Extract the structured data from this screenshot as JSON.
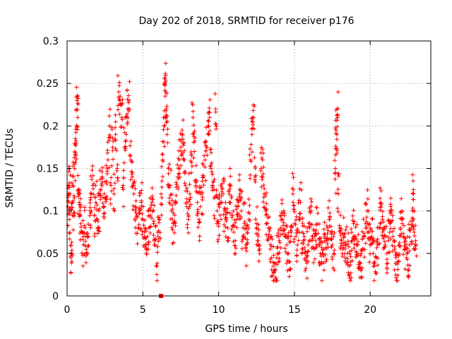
{
  "chart_data": {
    "type": "scatter",
    "title": "Day 202 of 2018, SRMTID for receiver p176",
    "xlabel": "GPS time / hours",
    "ylabel": "SRMTID / TECUs",
    "xlim": [
      0,
      24
    ],
    "ylim": [
      0,
      0.3
    ],
    "xticks": [
      0,
      5,
      10,
      15,
      20
    ],
    "yticks": [
      0,
      0.05,
      0.1,
      0.15,
      0.2,
      0.25,
      0.3
    ],
    "ytick_labels": [
      "0",
      "0.05",
      "0.1",
      "0.15",
      "0.2",
      "0.25",
      "0.3"
    ],
    "grid": true,
    "marker": "+",
    "marker_color": "#ff0000",
    "series": [
      {
        "name": "SRMTID",
        "points": [
          [
            0.05,
            0.105
          ],
          [
            0.1,
            0.13
          ],
          [
            0.15,
            0.09
          ],
          [
            0.2,
            0.12
          ],
          [
            0.25,
            0.045
          ],
          [
            0.3,
            0.05
          ],
          [
            0.35,
            0.11
          ],
          [
            0.4,
            0.14
          ],
          [
            0.45,
            0.095
          ],
          [
            0.5,
            0.155
          ],
          [
            0.55,
            0.185
          ],
          [
            0.6,
            0.18
          ],
          [
            0.65,
            0.23
          ],
          [
            0.7,
            0.21
          ],
          [
            0.75,
            0.12
          ],
          [
            0.8,
            0.11
          ],
          [
            0.85,
            0.1
          ],
          [
            0.9,
            0.085
          ],
          [
            1.0,
            0.075
          ],
          [
            1.1,
            0.06
          ],
          [
            1.2,
            0.08
          ],
          [
            1.3,
            0.05
          ],
          [
            1.4,
            0.07
          ],
          [
            1.5,
            0.1
          ],
          [
            1.6,
            0.12
          ],
          [
            1.7,
            0.13
          ],
          [
            1.8,
            0.095
          ],
          [
            1.9,
            0.11
          ],
          [
            2.0,
            0.09
          ],
          [
            2.1,
            0.1
          ],
          [
            2.2,
            0.125
          ],
          [
            2.3,
            0.14
          ],
          [
            2.4,
            0.105
          ],
          [
            2.5,
            0.115
          ],
          [
            2.6,
            0.135
          ],
          [
            2.7,
            0.16
          ],
          [
            2.8,
            0.2
          ],
          [
            2.9,
            0.13
          ],
          [
            3.0,
            0.175
          ],
          [
            3.1,
            0.12
          ],
          [
            3.2,
            0.19
          ],
          [
            3.3,
            0.15
          ],
          [
            3.4,
            0.24
          ],
          [
            3.5,
            0.235
          ],
          [
            3.6,
            0.21
          ],
          [
            3.7,
            0.13
          ],
          [
            3.8,
            0.175
          ],
          [
            3.9,
            0.19
          ],
          [
            4.0,
            0.22
          ],
          [
            4.1,
            0.23
          ],
          [
            4.2,
            0.16
          ],
          [
            4.3,
            0.14
          ],
          [
            4.4,
            0.12
          ],
          [
            4.5,
            0.105
          ],
          [
            4.6,
            0.095
          ],
          [
            4.7,
            0.08
          ],
          [
            4.8,
            0.1
          ],
          [
            4.9,
            0.11
          ],
          [
            5.0,
            0.09
          ],
          [
            5.1,
            0.075
          ],
          [
            5.2,
            0.06
          ],
          [
            5.3,
            0.07
          ],
          [
            5.4,
            0.08
          ],
          [
            5.5,
            0.095
          ],
          [
            5.6,
            0.115
          ],
          [
            5.7,
            0.085
          ],
          [
            5.8,
            0.06
          ],
          [
            5.9,
            0.035
          ],
          [
            6.0,
            0.07
          ],
          [
            6.1,
            0.09
          ],
          [
            6.2,
            0.12
          ],
          [
            6.3,
            0.16
          ],
          [
            6.4,
            0.2
          ],
          [
            6.45,
            0.25
          ],
          [
            6.5,
            0.24
          ],
          [
            6.55,
            0.22
          ],
          [
            6.6,
            0.19
          ],
          [
            6.7,
            0.15
          ],
          [
            6.8,
            0.13
          ],
          [
            6.9,
            0.1
          ],
          [
            7.0,
            0.085
          ],
          [
            7.1,
            0.095
          ],
          [
            7.2,
            0.11
          ],
          [
            7.3,
            0.14
          ],
          [
            7.4,
            0.16
          ],
          [
            7.5,
            0.175
          ],
          [
            7.6,
            0.19
          ],
          [
            7.7,
            0.16
          ],
          [
            7.8,
            0.13
          ],
          [
            7.9,
            0.105
          ],
          [
            8.0,
            0.09
          ],
          [
            8.1,
            0.12
          ],
          [
            8.2,
            0.145
          ],
          [
            8.3,
            0.21
          ],
          [
            8.4,
            0.17
          ],
          [
            8.5,
            0.13
          ],
          [
            8.6,
            0.11
          ],
          [
            8.7,
            0.09
          ],
          [
            8.8,
            0.105
          ],
          [
            8.9,
            0.12
          ],
          [
            9.0,
            0.14
          ],
          [
            9.1,
            0.16
          ],
          [
            9.2,
            0.175
          ],
          [
            9.3,
            0.2
          ],
          [
            9.4,
            0.21
          ],
          [
            9.5,
            0.15
          ],
          [
            9.6,
            0.13
          ],
          [
            9.7,
            0.115
          ],
          [
            9.8,
            0.22
          ],
          [
            9.9,
            0.1
          ],
          [
            10.0,
            0.085
          ],
          [
            10.1,
            0.095
          ],
          [
            10.2,
            0.11
          ],
          [
            10.3,
            0.12
          ],
          [
            10.4,
            0.1
          ],
          [
            10.5,
            0.09
          ],
          [
            10.6,
            0.08
          ],
          [
            10.7,
            0.11
          ],
          [
            10.8,
            0.13
          ],
          [
            10.9,
            0.095
          ],
          [
            11.0,
            0.075
          ],
          [
            11.1,
            0.065
          ],
          [
            11.2,
            0.09
          ],
          [
            11.3,
            0.11
          ],
          [
            11.4,
            0.12
          ],
          [
            11.5,
            0.1
          ],
          [
            11.6,
            0.07
          ],
          [
            11.7,
            0.085
          ],
          [
            11.8,
            0.06
          ],
          [
            11.9,
            0.075
          ],
          [
            12.0,
            0.09
          ],
          [
            12.1,
            0.16
          ],
          [
            12.2,
            0.19
          ],
          [
            12.3,
            0.21
          ],
          [
            12.4,
            0.14
          ],
          [
            12.5,
            0.08
          ],
          [
            12.6,
            0.065
          ],
          [
            12.7,
            0.055
          ],
          [
            12.8,
            0.15
          ],
          [
            12.9,
            0.16
          ],
          [
            13.0,
            0.12
          ],
          [
            13.1,
            0.1
          ],
          [
            13.2,
            0.085
          ],
          [
            13.3,
            0.07
          ],
          [
            13.4,
            0.055
          ],
          [
            13.5,
            0.045
          ],
          [
            13.6,
            0.035
          ],
          [
            13.7,
            0.03
          ],
          [
            13.8,
            0.02
          ],
          [
            13.9,
            0.05
          ],
          [
            14.0,
            0.065
          ],
          [
            14.1,
            0.08
          ],
          [
            14.2,
            0.09
          ],
          [
            14.3,
            0.1
          ],
          [
            14.4,
            0.07
          ],
          [
            14.5,
            0.06
          ],
          [
            14.6,
            0.05
          ],
          [
            14.7,
            0.04
          ],
          [
            14.8,
            0.075
          ],
          [
            14.9,
            0.12
          ],
          [
            15.0,
            0.085
          ],
          [
            15.1,
            0.07
          ],
          [
            15.2,
            0.06
          ],
          [
            15.3,
            0.09
          ],
          [
            15.4,
            0.11
          ],
          [
            15.5,
            0.075
          ],
          [
            15.6,
            0.065
          ],
          [
            15.7,
            0.05
          ],
          [
            15.8,
            0.045
          ],
          [
            15.9,
            0.06
          ],
          [
            16.0,
            0.08
          ],
          [
            16.1,
            0.1
          ],
          [
            16.2,
            0.07
          ],
          [
            16.3,
            0.055
          ],
          [
            16.4,
            0.065
          ],
          [
            16.5,
            0.085
          ],
          [
            16.6,
            0.06
          ],
          [
            16.7,
            0.05
          ],
          [
            16.8,
            0.04
          ],
          [
            16.9,
            0.055
          ],
          [
            17.0,
            0.07
          ],
          [
            17.1,
            0.065
          ],
          [
            17.2,
            0.08
          ],
          [
            17.3,
            0.09
          ],
          [
            17.4,
            0.075
          ],
          [
            17.5,
            0.06
          ],
          [
            17.6,
            0.05
          ],
          [
            17.7,
            0.145
          ],
          [
            17.75,
            0.195
          ],
          [
            17.8,
            0.19
          ],
          [
            17.85,
            0.22
          ],
          [
            17.9,
            0.12
          ],
          [
            18.0,
            0.08
          ],
          [
            18.1,
            0.065
          ],
          [
            18.2,
            0.055
          ],
          [
            18.3,
            0.07
          ],
          [
            18.4,
            0.06
          ],
          [
            18.5,
            0.05
          ],
          [
            18.6,
            0.035
          ],
          [
            18.7,
            0.04
          ],
          [
            18.8,
            0.065
          ],
          [
            18.9,
            0.085
          ],
          [
            19.0,
            0.07
          ],
          [
            19.1,
            0.06
          ],
          [
            19.2,
            0.05
          ],
          [
            19.3,
            0.04
          ],
          [
            19.4,
            0.03
          ],
          [
            19.5,
            0.055
          ],
          [
            19.6,
            0.07
          ],
          [
            19.7,
            0.085
          ],
          [
            19.8,
            0.1
          ],
          [
            19.9,
            0.075
          ],
          [
            20.0,
            0.06
          ],
          [
            20.1,
            0.07
          ],
          [
            20.2,
            0.05
          ],
          [
            20.3,
            0.04
          ],
          [
            20.4,
            0.045
          ],
          [
            20.5,
            0.06
          ],
          [
            20.6,
            0.08
          ],
          [
            20.7,
            0.11
          ],
          [
            20.8,
            0.09
          ],
          [
            20.9,
            0.07
          ],
          [
            21.0,
            0.06
          ],
          [
            21.1,
            0.05
          ],
          [
            21.2,
            0.065
          ],
          [
            21.3,
            0.085
          ],
          [
            21.4,
            0.1
          ],
          [
            21.5,
            0.07
          ],
          [
            21.6,
            0.055
          ],
          [
            21.7,
            0.045
          ],
          [
            21.8,
            0.04
          ],
          [
            21.9,
            0.06
          ],
          [
            22.0,
            0.08
          ],
          [
            22.1,
            0.09
          ],
          [
            22.2,
            0.07
          ],
          [
            22.3,
            0.055
          ],
          [
            22.4,
            0.045
          ],
          [
            22.5,
            0.03
          ],
          [
            22.6,
            0.06
          ],
          [
            22.7,
            0.08
          ],
          [
            22.8,
            0.1
          ],
          [
            22.85,
            0.12
          ],
          [
            22.9,
            0.075
          ],
          [
            23.0,
            0.065
          ]
        ]
      }
    ],
    "outlier_points": [
      [
        6.2,
        0.0
      ]
    ]
  }
}
